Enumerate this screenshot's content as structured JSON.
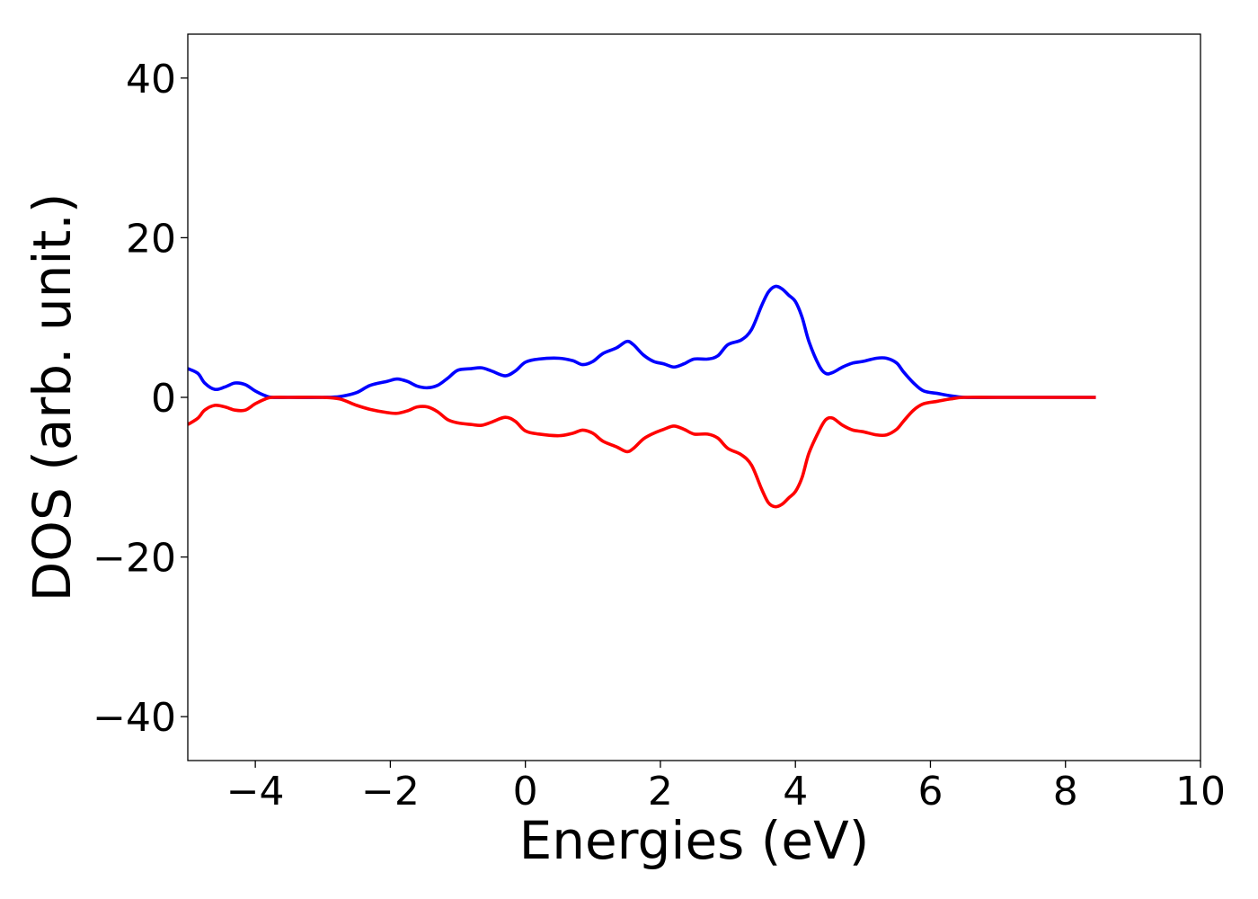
{
  "chart_data": {
    "type": "line",
    "xlabel": "Energies (eV)",
    "ylabel": "DOS (arb. unit.)",
    "xlim": [
      -5,
      10
    ],
    "ylim": [
      -45.5,
      45.5
    ],
    "xticks": [
      -4,
      -2,
      0,
      2,
      4,
      6,
      8,
      10
    ],
    "xtick_labels": [
      "−4",
      "−2",
      "0",
      "2",
      "4",
      "6",
      "8",
      "10"
    ],
    "yticks": [
      -40,
      -20,
      0,
      20,
      40
    ],
    "ytick_labels": [
      "−40",
      "−20",
      "0",
      "20",
      "40"
    ],
    "grid": false,
    "legend": "none",
    "series": [
      {
        "color": "#0000ff",
        "x": [
          -5.0,
          -4.85,
          -4.75,
          -4.6,
          -4.45,
          -4.3,
          -4.15,
          -4.0,
          -3.85,
          -3.75,
          -3.5,
          -3.0,
          -2.75,
          -2.5,
          -2.3,
          -2.05,
          -1.9,
          -1.75,
          -1.6,
          -1.45,
          -1.3,
          -1.15,
          -1.0,
          -0.8,
          -0.65,
          -0.5,
          -0.3,
          -0.15,
          0.0,
          0.2,
          0.5,
          0.7,
          0.85,
          1.0,
          1.15,
          1.35,
          1.5,
          1.6,
          1.75,
          1.9,
          2.05,
          2.2,
          2.35,
          2.5,
          2.7,
          2.85,
          3.0,
          3.2,
          3.35,
          3.5,
          3.6,
          3.7,
          3.8,
          3.9,
          4.0,
          4.1,
          4.2,
          4.35,
          4.45,
          4.55,
          4.7,
          4.85,
          5.0,
          5.2,
          5.35,
          5.5,
          5.6,
          5.75,
          5.9,
          6.1,
          6.3,
          6.5,
          7.0,
          8.0,
          8.45
        ],
        "y": [
          3.6,
          3.0,
          1.8,
          1.0,
          1.3,
          1.8,
          1.6,
          0.8,
          0.2,
          0.0,
          0.0,
          0.0,
          0.1,
          0.6,
          1.5,
          2.0,
          2.3,
          2.0,
          1.4,
          1.2,
          1.5,
          2.4,
          3.4,
          3.6,
          3.7,
          3.3,
          2.7,
          3.3,
          4.4,
          4.8,
          4.9,
          4.6,
          4.1,
          4.5,
          5.5,
          6.2,
          7.0,
          6.6,
          5.3,
          4.5,
          4.2,
          3.8,
          4.2,
          4.8,
          4.8,
          5.2,
          6.6,
          7.2,
          8.5,
          11.5,
          13.2,
          13.9,
          13.6,
          12.8,
          12.0,
          10.0,
          7.0,
          4.0,
          3.0,
          3.1,
          3.8,
          4.3,
          4.5,
          4.9,
          4.9,
          4.3,
          3.2,
          1.8,
          0.8,
          0.5,
          0.2,
          0.0,
          0.0,
          0.0,
          0.0
        ]
      },
      {
        "color": "#ff0000",
        "x": [
          -5.0,
          -4.85,
          -4.75,
          -4.6,
          -4.45,
          -4.3,
          -4.15,
          -4.0,
          -3.85,
          -3.75,
          -3.5,
          -3.0,
          -2.75,
          -2.5,
          -2.3,
          -2.05,
          -1.9,
          -1.75,
          -1.6,
          -1.45,
          -1.3,
          -1.15,
          -1.0,
          -0.8,
          -0.65,
          -0.5,
          -0.3,
          -0.15,
          0.0,
          0.2,
          0.5,
          0.7,
          0.85,
          1.0,
          1.15,
          1.35,
          1.5,
          1.6,
          1.75,
          1.9,
          2.05,
          2.2,
          2.35,
          2.5,
          2.7,
          2.85,
          3.0,
          3.2,
          3.35,
          3.5,
          3.6,
          3.7,
          3.8,
          3.9,
          4.0,
          4.1,
          4.2,
          4.35,
          4.45,
          4.55,
          4.7,
          4.85,
          5.0,
          5.2,
          5.35,
          5.5,
          5.6,
          5.75,
          5.9,
          6.1,
          6.3,
          6.5,
          7.0,
          8.0,
          8.45
        ],
        "y": [
          -3.4,
          -2.6,
          -1.6,
          -1.0,
          -1.2,
          -1.6,
          -1.6,
          -0.8,
          -0.2,
          0.0,
          0.0,
          0.0,
          -0.2,
          -1.0,
          -1.5,
          -1.9,
          -2.0,
          -1.7,
          -1.2,
          -1.2,
          -1.8,
          -2.8,
          -3.2,
          -3.4,
          -3.5,
          -3.1,
          -2.5,
          -3.0,
          -4.2,
          -4.6,
          -4.8,
          -4.5,
          -4.1,
          -4.5,
          -5.5,
          -6.2,
          -6.8,
          -6.4,
          -5.2,
          -4.5,
          -4.0,
          -3.6,
          -4.0,
          -4.6,
          -4.6,
          -5.1,
          -6.4,
          -7.2,
          -8.5,
          -11.5,
          -13.2,
          -13.7,
          -13.4,
          -12.6,
          -11.8,
          -10.0,
          -7.0,
          -4.2,
          -2.8,
          -2.6,
          -3.5,
          -4.1,
          -4.3,
          -4.7,
          -4.7,
          -4.0,
          -3.0,
          -1.6,
          -0.8,
          -0.5,
          -0.2,
          0.0,
          0.0,
          0.0,
          0.0
        ]
      }
    ]
  }
}
